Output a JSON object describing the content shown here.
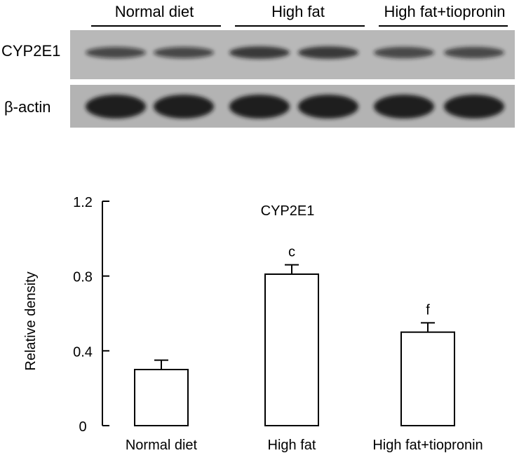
{
  "blot": {
    "groups": [
      "Normal diet",
      "High fat",
      "High fat+tiopronin"
    ],
    "rows": [
      {
        "label": "CYP2E1",
        "intensity": [
          0.55,
          0.55,
          0.75,
          0.75,
          0.6,
          0.6
        ]
      },
      {
        "label": "β-actin",
        "intensity": [
          1.0,
          1.0,
          1.0,
          1.0,
          1.0,
          1.0
        ]
      }
    ],
    "colors": {
      "membrane": "#b8b8b8",
      "band": "#161616"
    }
  },
  "chart_data": {
    "type": "bar",
    "title": "CYP2E1",
    "categories": [
      "Normal diet",
      "High fat",
      "High fat+tiopronin"
    ],
    "values": [
      0.3,
      0.81,
      0.5
    ],
    "errors": [
      0.05,
      0.05,
      0.05
    ],
    "annotations": [
      "",
      "c",
      "f"
    ],
    "ylabel": "Relative density",
    "xlabel": "",
    "ylim": [
      0,
      1.2
    ],
    "yticks": [
      0,
      0.4,
      0.8,
      1.2
    ],
    "ytick_labels": [
      "0",
      "0.4",
      "0.8",
      "1.2"
    ],
    "grid": false,
    "legend": "none",
    "colors": {
      "bar_fill": "#ffffff",
      "stroke": "#000000"
    }
  }
}
